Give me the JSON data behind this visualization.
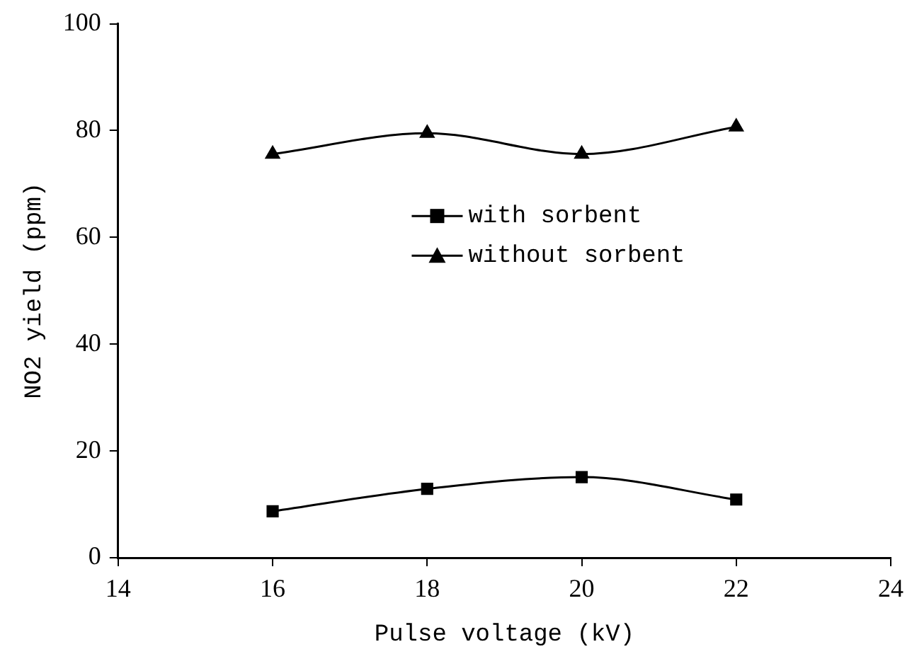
{
  "chart_data": {
    "type": "line",
    "xlabel": "Pulse voltage (kV)",
    "ylabel": "NO2 yield (ppm)",
    "x": [
      16,
      18,
      20,
      22
    ],
    "series": [
      {
        "name": "with sorbent",
        "color": "#000000",
        "marker": "square",
        "values": [
          8.7,
          12.9,
          15.1,
          10.9
        ]
      },
      {
        "name": "without sorbent",
        "color": "#000000",
        "marker": "triangle",
        "values": [
          75.6,
          79.5,
          75.6,
          80.7
        ]
      }
    ],
    "xlim": [
      14,
      24
    ],
    "xticks": [
      14,
      16,
      18,
      20,
      22,
      24
    ],
    "ylim": [
      0,
      100
    ],
    "yticks": [
      0,
      20,
      40,
      60,
      80,
      100
    ],
    "grid": false,
    "legend": "right",
    "line_style": "solid"
  }
}
